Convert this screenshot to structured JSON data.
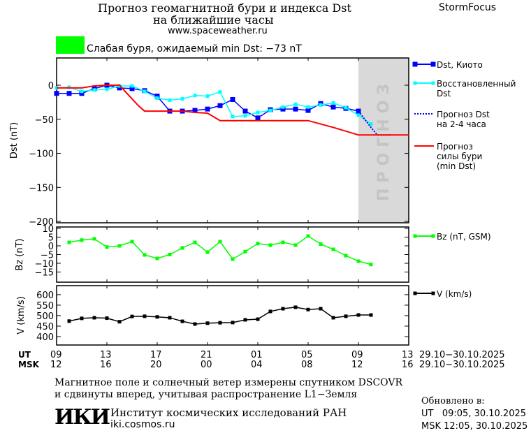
{
  "header": {
    "title_line1": "Прогноз геомагнитной бури и индекса Dst",
    "title_line2": "на ближайшие часы",
    "url": "www.spaceweather.ru",
    "brand": "StormFocus"
  },
  "status": {
    "text": "Слабая буря, ожидаемый min Dst: −73 nT",
    "color": "#00ff00"
  },
  "forecast_band_label": "ПРОГНОЗ",
  "time_axis": {
    "ut_label": "UT",
    "msk_label": "MSK",
    "ut_ticks": [
      "09",
      "13",
      "17",
      "21",
      "01",
      "05",
      "09",
      "13"
    ],
    "msk_ticks": [
      "12",
      "16",
      "20",
      "00",
      "04",
      "08",
      "12",
      "16"
    ],
    "ut_dates": "29.10−30.10.2025",
    "msk_dates": "29.10−30.10.2025"
  },
  "chart_data": [
    {
      "type": "line",
      "ylabel": "Dst (nT)",
      "ylim": [
        -202,
        40
      ],
      "yticks": [
        "0",
        "−50",
        "−100",
        "−150",
        "−200"
      ],
      "ytick_values": [
        0,
        -50,
        -100,
        -150,
        -200
      ],
      "x_unit": "hours from 09 UT 29.10.2025",
      "xlim": [
        0,
        28
      ],
      "forecast_region": [
        24,
        28
      ],
      "series": [
        {
          "name": "Dst, Киото",
          "color": "#0000ff",
          "x": [
            0,
            1,
            2,
            3,
            4,
            5,
            6,
            7,
            8,
            9,
            10,
            11,
            12,
            13,
            14,
            15,
            16,
            17,
            18,
            19,
            20,
            21,
            22,
            23,
            24
          ],
          "values": [
            -12,
            -12,
            -12,
            -5,
            0,
            -4,
            -5,
            -8,
            -16,
            -38,
            -38,
            -37,
            -35,
            -30,
            -21,
            -38,
            -48,
            -36,
            -35,
            -35,
            -37,
            -27,
            -32,
            -34,
            -38
          ]
        },
        {
          "name": "Восстановленный Dst",
          "color": "#00ffff",
          "x": [
            0,
            1,
            2,
            3,
            4,
            5,
            6,
            7,
            8,
            9,
            10,
            11,
            12,
            13,
            14,
            15,
            16,
            17,
            18,
            19,
            20,
            21,
            22,
            23,
            24,
            25
          ],
          "values": [
            -4,
            -3,
            -9,
            -7,
            -6,
            -1,
            -1,
            -9,
            -19,
            -22,
            -20,
            -15,
            -16,
            -10,
            -46,
            -45,
            -40,
            -37,
            -32,
            -28,
            -32,
            -29,
            -26,
            -33,
            -44,
            -57
          ]
        },
        {
          "name": "Прогноз Dst на 2-4 часа",
          "color": "#0000ff",
          "dotted": true,
          "x": [
            24,
            25,
            25.5,
            26.5
          ],
          "values": [
            -38,
            -62,
            -73,
            -73
          ]
        },
        {
          "name": "Прогноз силы бури (min Dst)",
          "color": "#ff0000",
          "x": [
            0,
            2,
            3,
            4,
            5,
            6,
            6.5,
            7,
            10,
            11,
            12,
            13,
            20,
            22,
            24,
            28
          ],
          "values": [
            -4,
            -4,
            -1,
            0,
            0,
            -20,
            -30,
            -38,
            -38,
            -40,
            -41,
            -52,
            -52,
            -62,
            -73,
            -73
          ]
        }
      ]
    },
    {
      "type": "line",
      "ylabel": "Bz (nT)",
      "ylim": [
        -20.8,
        10.8
      ],
      "yticks": [
        "10",
        "5",
        "0",
        "−5",
        "−10",
        "−15"
      ],
      "ytick_values": [
        10,
        5,
        0,
        -5,
        -10,
        -15
      ],
      "xlim": [
        0,
        28
      ],
      "series": [
        {
          "name": "Bz (nT, GSM)",
          "color": "#00ff00",
          "x": [
            1,
            2,
            3,
            4,
            5,
            6,
            7,
            8,
            9,
            10,
            11,
            12,
            13,
            14,
            15,
            16,
            17,
            18,
            19,
            20,
            21,
            22,
            23,
            24,
            25
          ],
          "values": [
            2,
            3.3,
            4,
            -0.7,
            0,
            2.4,
            -5.2,
            -7.2,
            -5,
            -1.2,
            2,
            -3.6,
            2.4,
            -7.6,
            -3.3,
            1.3,
            0.4,
            2,
            0.4,
            5.6,
            1,
            -2,
            -5.6,
            -8.8,
            -10.7
          ]
        }
      ]
    },
    {
      "type": "line",
      "ylabel": "V (km/s)",
      "ylim": [
        360,
        643
      ],
      "yticks": [
        "600",
        "550",
        "500",
        "450",
        "400"
      ],
      "ytick_values": [
        600,
        550,
        500,
        450,
        400
      ],
      "xlim": [
        0,
        28
      ],
      "series": [
        {
          "name": "V (km/s)",
          "color": "#000000",
          "x": [
            1,
            2,
            3,
            4,
            5,
            6,
            7,
            8,
            9,
            10,
            11,
            12,
            13,
            14,
            15,
            16,
            17,
            18,
            19,
            20,
            21,
            22,
            23,
            24,
            25
          ],
          "values": [
            474,
            487,
            490,
            488,
            471,
            496,
            497,
            494,
            490,
            473,
            460,
            464,
            466,
            467,
            480,
            483,
            520,
            533,
            540,
            529,
            533,
            490,
            497,
            503,
            503
          ]
        }
      ]
    }
  ],
  "footer": {
    "note_line1": "Магнитное поле и солнечный ветер измерены спутником DSCOVR",
    "note_line2": "и сдвинуты вперед, учитывая распространение L1−Земля",
    "logo": "ИКИ",
    "institute": "Институт космических исследований РАН",
    "institute_url": "iki.cosmos.ru",
    "updated_label": "Обновлено в:",
    "updated_ut": "UT   09:05, 30.10.2025",
    "updated_msk": "MSK 12:05, 30.10.2025"
  }
}
